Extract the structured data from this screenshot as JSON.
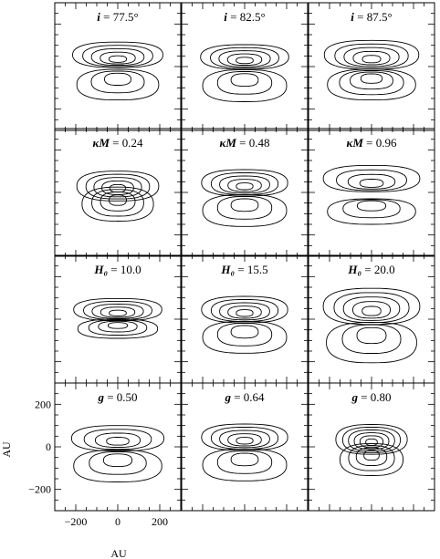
{
  "figure": {
    "xlabel": "AU",
    "ylabel": "AU"
  },
  "chart_data": {
    "type": "contour",
    "grid": {
      "rows": 4,
      "cols": 3
    },
    "xlim": [
      -300,
      300
    ],
    "ylim": [
      -300,
      300
    ],
    "x_ticks": [
      -200,
      0,
      200
    ],
    "y_ticks": [
      -200,
      0,
      200
    ],
    "x_minor_step": 50,
    "y_minor_step": 50,
    "xlabel": "AU",
    "ylabel": "AU",
    "panels": [
      {
        "row": 0,
        "col": 0,
        "param": "i",
        "value": "77.5°",
        "upper": {
          "cy": 55,
          "rx": 215,
          "ry": 60,
          "levels": 5
        },
        "lower": {
          "cy": -85,
          "rx": 195,
          "ry": 72,
          "levels": 3
        }
      },
      {
        "row": 0,
        "col": 1,
        "param": "i",
        "value": "82.5°",
        "upper": {
          "cy": 45,
          "rx": 210,
          "ry": 58,
          "levels": 5
        },
        "lower": {
          "cy": -90,
          "rx": 200,
          "ry": 75,
          "levels": 3
        }
      },
      {
        "row": 0,
        "col": 2,
        "param": "i",
        "value": "87.5°",
        "upper": {
          "cy": 55,
          "rx": 225,
          "ry": 68,
          "levels": 5
        },
        "lower": {
          "cy": -85,
          "rx": 210,
          "ry": 72,
          "levels": 4
        }
      },
      {
        "row": 1,
        "col": 0,
        "param": "κM",
        "value": "0.24",
        "upper": {
          "cy": 30,
          "rx": 195,
          "ry": 70,
          "levels": 5
        },
        "lower": {
          "cy": -55,
          "rx": 170,
          "ry": 80,
          "levels": 4
        }
      },
      {
        "row": 1,
        "col": 1,
        "param": "κM",
        "value": "0.48",
        "upper": {
          "cy": 45,
          "rx": 205,
          "ry": 62,
          "levels": 5
        },
        "lower": {
          "cy": -85,
          "rx": 200,
          "ry": 75,
          "levels": 3
        }
      },
      {
        "row": 1,
        "col": 2,
        "param": "κM",
        "value": "0.96",
        "upper": {
          "cy": 65,
          "rx": 230,
          "ry": 62,
          "levels": 4
        },
        "lower": {
          "cy": -90,
          "rx": 210,
          "ry": 60,
          "levels": 3
        }
      },
      {
        "row": 2,
        "col": 0,
        "param": "H₀",
        "value": "10.0",
        "upper": {
          "cy": 45,
          "rx": 210,
          "ry": 52,
          "levels": 5
        },
        "lower": {
          "cy": -45,
          "rx": 190,
          "ry": 45,
          "levels": 4
        }
      },
      {
        "row": 2,
        "col": 1,
        "param": "H₀",
        "value": "15.5",
        "upper": {
          "cy": 45,
          "rx": 205,
          "ry": 62,
          "levels": 5
        },
        "lower": {
          "cy": -85,
          "rx": 200,
          "ry": 75,
          "levels": 3
        }
      },
      {
        "row": 2,
        "col": 2,
        "param": "H₀",
        "value": "20.0",
        "upper": {
          "cy": 60,
          "rx": 230,
          "ry": 85,
          "levels": 5
        },
        "lower": {
          "cy": -110,
          "rx": 215,
          "ry": 95,
          "levels": 3
        }
      },
      {
        "row": 3,
        "col": 0,
        "param": "g",
        "value": "0.50",
        "upper": {
          "cy": 40,
          "rx": 220,
          "ry": 60,
          "levels": 4
        },
        "lower": {
          "cy": -90,
          "rx": 210,
          "ry": 75,
          "levels": 3
        }
      },
      {
        "row": 3,
        "col": 1,
        "param": "g",
        "value": "0.64",
        "upper": {
          "cy": 45,
          "rx": 205,
          "ry": 62,
          "levels": 5
        },
        "lower": {
          "cy": -85,
          "rx": 200,
          "ry": 75,
          "levels": 3
        }
      },
      {
        "row": 3,
        "col": 2,
        "param": "g",
        "value": "0.80",
        "upper": {
          "cy": 35,
          "rx": 170,
          "ry": 70,
          "levels": 6
        },
        "lower": {
          "cy": -60,
          "rx": 150,
          "ry": 75,
          "levels": 4
        }
      }
    ]
  }
}
